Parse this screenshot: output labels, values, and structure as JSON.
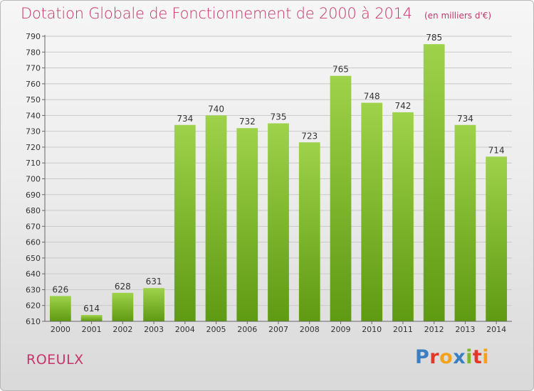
{
  "header": {
    "title": "Dotation Globale de Fonctionnement de 2000 à 2014",
    "unit": "(en milliers d'€)"
  },
  "footer": {
    "commune": "ROEULX",
    "logo_text": "Proxiti",
    "logo_letters": [
      {
        "ch": "P",
        "color": "#3a7fc4"
      },
      {
        "ch": "r",
        "color": "#e2372a"
      },
      {
        "ch": "o",
        "color": "#f2a31b"
      },
      {
        "ch": "x",
        "color": "#3a7fc4"
      },
      {
        "ch": "i",
        "color": "#7fb62d"
      },
      {
        "ch": "t",
        "color": "#e2372a"
      },
      {
        "ch": "i",
        "color": "#f2a31b"
      }
    ]
  },
  "colors": {
    "title": "#c8346a",
    "bar_top": "#9ed24a",
    "bar_bottom": "#5e9a12"
  },
  "chart_data": {
    "type": "bar",
    "title": "Dotation Globale de Fonctionnement de 2000 à 2014",
    "subtitle": "(en milliers d'€)",
    "categories": [
      "2000",
      "2001",
      "2002",
      "2003",
      "2004",
      "2005",
      "2006",
      "2007",
      "2008",
      "2009",
      "2010",
      "2011",
      "2012",
      "2013",
      "2014"
    ],
    "values": [
      626,
      614,
      628,
      631,
      734,
      740,
      732,
      735,
      723,
      765,
      748,
      742,
      785,
      734,
      714
    ],
    "ylim": [
      610,
      790
    ],
    "ytick_step": 10,
    "grid": true,
    "legend": "none",
    "xlabel": "",
    "ylabel": ""
  }
}
